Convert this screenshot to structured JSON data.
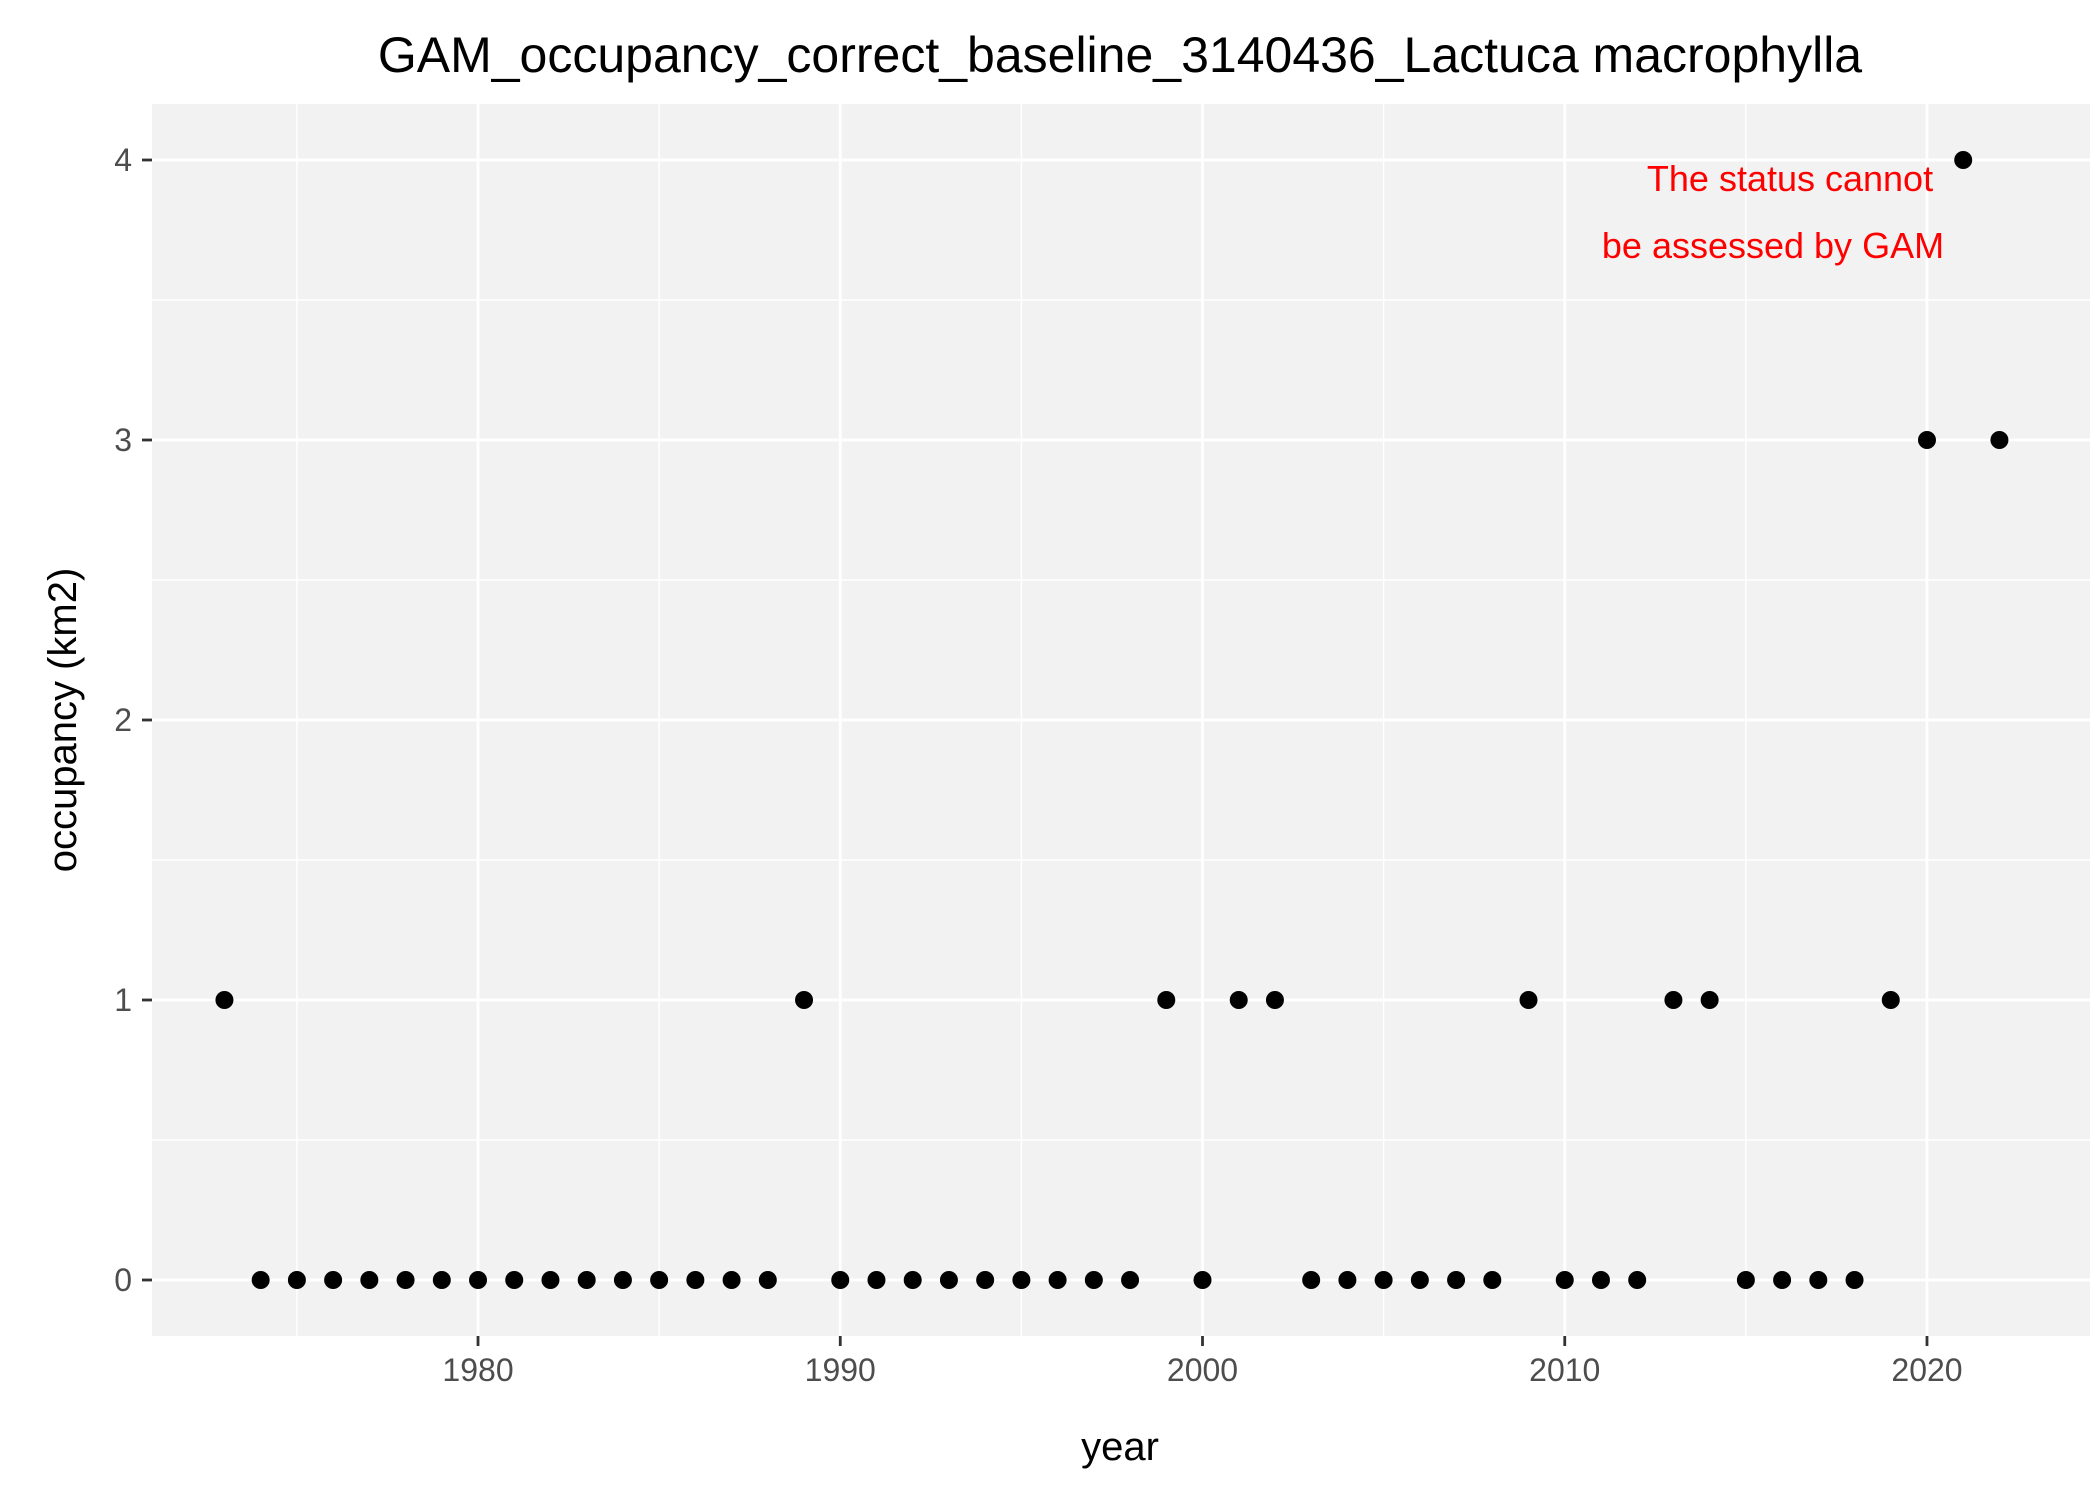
{
  "chart_data": {
    "type": "scatter",
    "title": "GAM_occupancy_correct_baseline_3140436_Lactuca macrophylla",
    "xlabel": "year",
    "ylabel": "occupancy (km2)",
    "xlim": [
      1971,
      2024.5
    ],
    "ylim": [
      -0.2,
      4.2
    ],
    "x_ticks": [
      1980,
      1990,
      2000,
      2010,
      2020
    ],
    "x_tick_labels": [
      "1980",
      "1990",
      "2000",
      "2010",
      "2020"
    ],
    "y_ticks": [
      0,
      1,
      2,
      3,
      4
    ],
    "y_tick_labels": [
      "0",
      "1",
      "2",
      "3",
      "4"
    ],
    "grid": true,
    "annotation": {
      "lines": [
        "The status cannot",
        "be assessed by GAM"
      ],
      "color": "#ff0000",
      "position": "top-right"
    },
    "panel_color": "#f2f2f2",
    "grid_color": "#ffffff",
    "point_color": "#000000",
    "points": [
      {
        "x": 1973,
        "y": 1
      },
      {
        "x": 1974,
        "y": 0
      },
      {
        "x": 1975,
        "y": 0
      },
      {
        "x": 1976,
        "y": 0
      },
      {
        "x": 1977,
        "y": 0
      },
      {
        "x": 1978,
        "y": 0
      },
      {
        "x": 1979,
        "y": 0
      },
      {
        "x": 1980,
        "y": 0
      },
      {
        "x": 1981,
        "y": 0
      },
      {
        "x": 1982,
        "y": 0
      },
      {
        "x": 1983,
        "y": 0
      },
      {
        "x": 1984,
        "y": 0
      },
      {
        "x": 1985,
        "y": 0
      },
      {
        "x": 1986,
        "y": 0
      },
      {
        "x": 1987,
        "y": 0
      },
      {
        "x": 1988,
        "y": 0
      },
      {
        "x": 1989,
        "y": 1
      },
      {
        "x": 1990,
        "y": 0
      },
      {
        "x": 1991,
        "y": 0
      },
      {
        "x": 1992,
        "y": 0
      },
      {
        "x": 1993,
        "y": 0
      },
      {
        "x": 1994,
        "y": 0
      },
      {
        "x": 1995,
        "y": 0
      },
      {
        "x": 1996,
        "y": 0
      },
      {
        "x": 1997,
        "y": 0
      },
      {
        "x": 1998,
        "y": 0
      },
      {
        "x": 1999,
        "y": 1
      },
      {
        "x": 2000,
        "y": 0
      },
      {
        "x": 2001,
        "y": 1
      },
      {
        "x": 2002,
        "y": 1
      },
      {
        "x": 2003,
        "y": 0
      },
      {
        "x": 2004,
        "y": 0
      },
      {
        "x": 2005,
        "y": 0
      },
      {
        "x": 2006,
        "y": 0
      },
      {
        "x": 2007,
        "y": 0
      },
      {
        "x": 2008,
        "y": 0
      },
      {
        "x": 2009,
        "y": 1
      },
      {
        "x": 2010,
        "y": 0
      },
      {
        "x": 2011,
        "y": 0
      },
      {
        "x": 2012,
        "y": 0
      },
      {
        "x": 2013,
        "y": 1
      },
      {
        "x": 2014,
        "y": 1
      },
      {
        "x": 2015,
        "y": 0
      },
      {
        "x": 2016,
        "y": 0
      },
      {
        "x": 2017,
        "y": 0
      },
      {
        "x": 2018,
        "y": 0
      },
      {
        "x": 2019,
        "y": 1
      },
      {
        "x": 2020,
        "y": 3
      },
      {
        "x": 2021,
        "y": 4
      },
      {
        "x": 2022,
        "y": 3
      }
    ]
  }
}
